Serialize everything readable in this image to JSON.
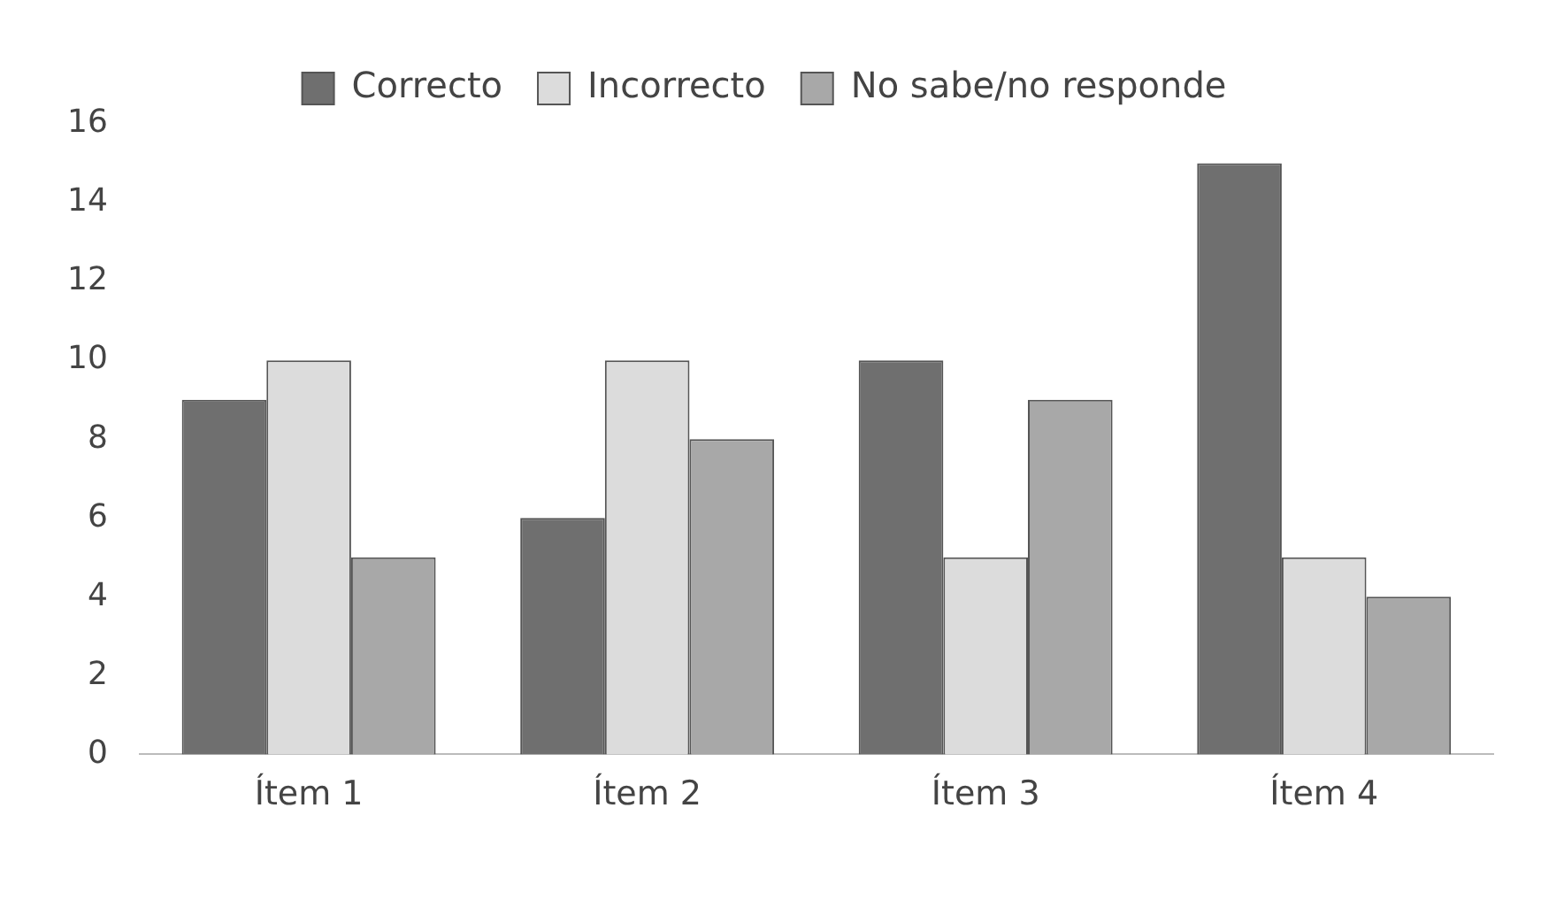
{
  "chart_data": {
    "type": "bar",
    "categories": [
      "Ítem 1",
      "Ítem 2",
      "Ítem 3",
      "Ítem 4"
    ],
    "series": [
      {
        "name": "Correcto",
        "color": "#6f6f6f",
        "values": [
          9,
          6,
          10,
          15
        ]
      },
      {
        "name": "Incorrecto",
        "color": "#dcdcdc",
        "values": [
          10,
          10,
          5,
          5
        ]
      },
      {
        "name": "No sabe/no responde",
        "color": "#a8a8a8",
        "values": [
          5,
          8,
          9,
          4
        ]
      }
    ],
    "ylim": [
      0,
      16
    ],
    "yticks": [
      0,
      2,
      4,
      6,
      8,
      10,
      12,
      14,
      16
    ],
    "grid": false,
    "legend": "top"
  }
}
